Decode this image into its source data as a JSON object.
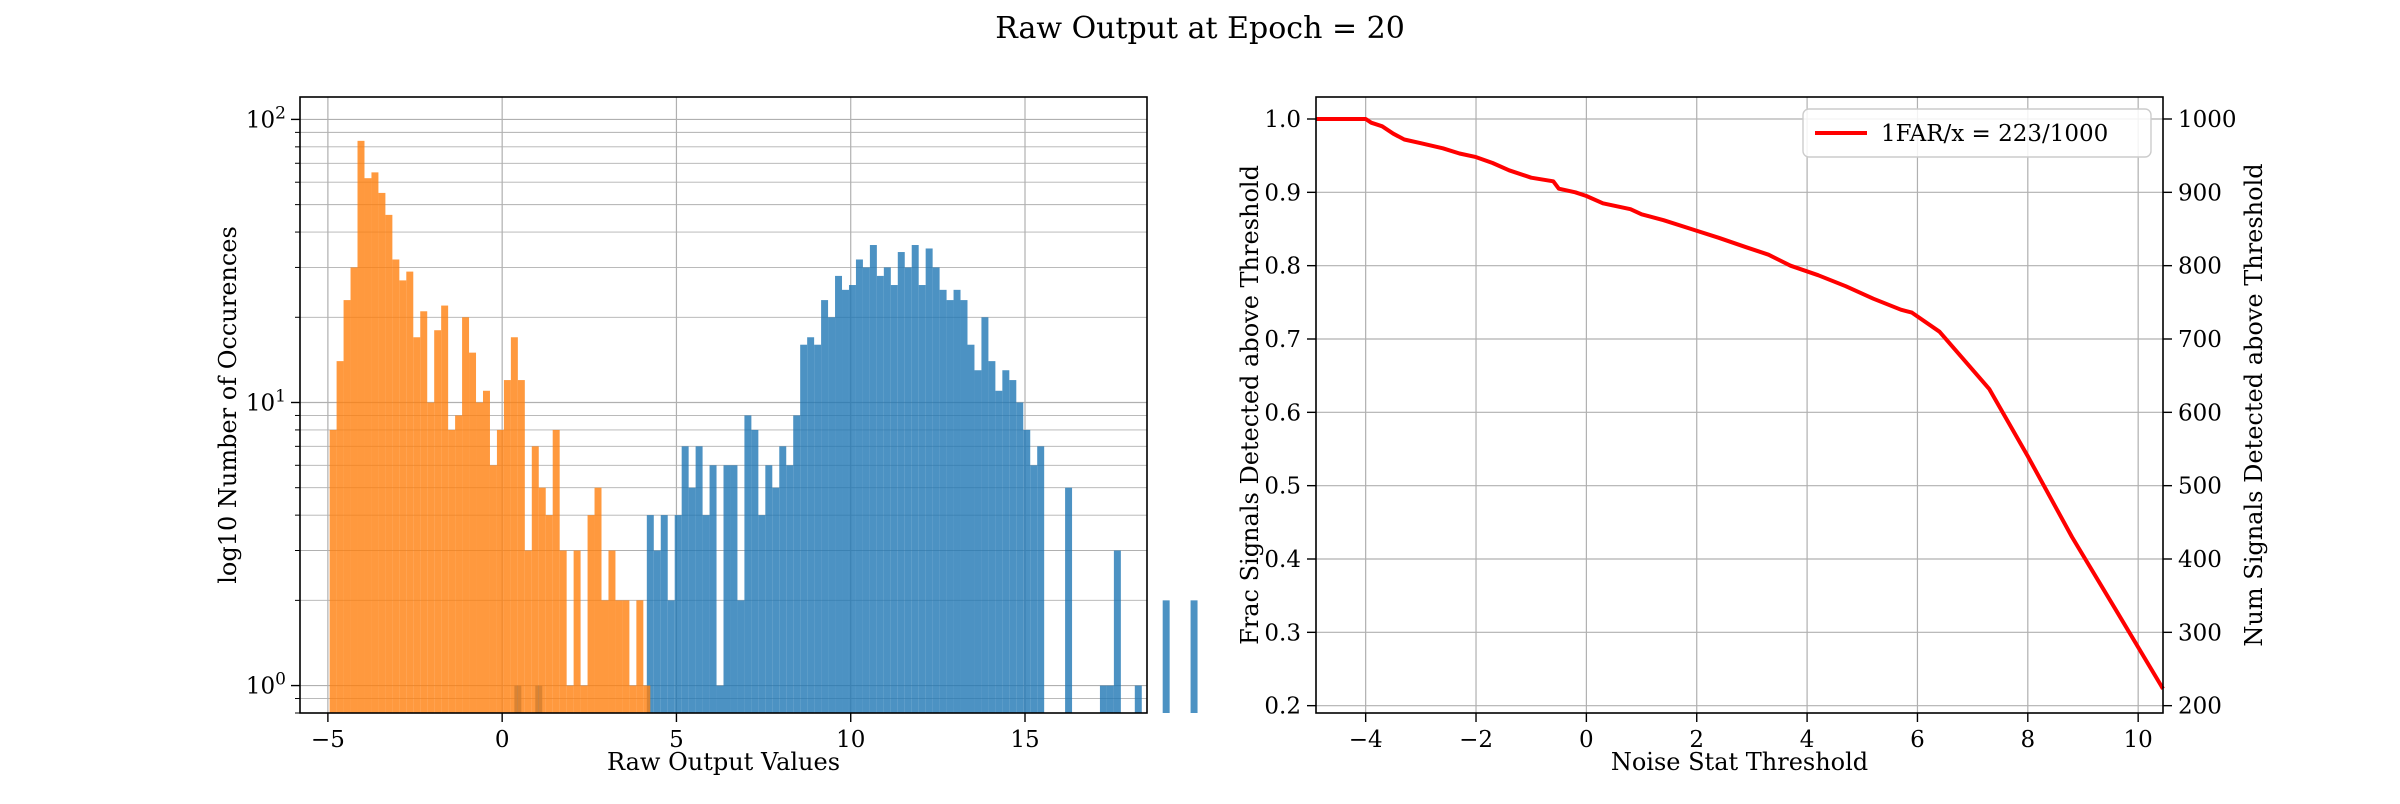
{
  "figure": {
    "title": "Raw Output at Epoch = 20"
  },
  "chart_data": [
    {
      "type": "histogram",
      "scale": "log",
      "xlabel": "Raw Output Values",
      "ylabel": "log10 Number of Occurences",
      "xlim": [
        -5.8,
        18.5
      ],
      "ylim": [
        0.8,
        120
      ],
      "xticks": [
        -5,
        0,
        5,
        10,
        15
      ],
      "yticks": [
        {
          "value": 1,
          "label": "10^0"
        },
        {
          "value": 10,
          "label": "10^1"
        },
        {
          "value": 100,
          "label": "10^2"
        }
      ],
      "grid": true,
      "series": [
        {
          "color": "#1f77b4",
          "bin_start": -3.85,
          "bin_width": 0.2,
          "counts": [
            0,
            0,
            0,
            0,
            0,
            0,
            0,
            0,
            0,
            0,
            0,
            0,
            0,
            0,
            0,
            0,
            0,
            0,
            0,
            0,
            0,
            1,
            0,
            0,
            1,
            0,
            0,
            0,
            0,
            0,
            0,
            0,
            0,
            0,
            0,
            0,
            0,
            0,
            0,
            0,
            4,
            3,
            4,
            2,
            4,
            7,
            5,
            7,
            4,
            6,
            1,
            6,
            6,
            2,
            9,
            8,
            4,
            6,
            5,
            7,
            6,
            9,
            16,
            17,
            16,
            23,
            20,
            28,
            25,
            26,
            32,
            30,
            36,
            28,
            30,
            26,
            34,
            30,
            36,
            26,
            35,
            30,
            25,
            23,
            25,
            23,
            16,
            13,
            20,
            14,
            11,
            13,
            12,
            10,
            8,
            6,
            7,
            0,
            0,
            0,
            5,
            0,
            0,
            0,
            0,
            1,
            1,
            3,
            0,
            0,
            1,
            0,
            0,
            0,
            2,
            0,
            0,
            0,
            2
          ]
        },
        {
          "color": "#ff7f0e",
          "bin_start": -4.95,
          "bin_width": 0.2,
          "counts": [
            8,
            14,
            23,
            30,
            84,
            62,
            65,
            55,
            46,
            32,
            27,
            29,
            17,
            21,
            10,
            18,
            22,
            8,
            9,
            20,
            15,
            10,
            11,
            6,
            8,
            12,
            17,
            12,
            3,
            7,
            5,
            4,
            8,
            3,
            1,
            3,
            1,
            4,
            5,
            2,
            3,
            2,
            2,
            1,
            2,
            1
          ]
        }
      ]
    },
    {
      "type": "line",
      "xlabel": "Noise Stat Threshold",
      "ylabel": "Frac Signals Detected above Threshold",
      "y2label": "Num Signals Detected above Threshold",
      "xlim": [
        -4.9,
        10.45
      ],
      "ylim": [
        0.19,
        1.03
      ],
      "y2lim": [
        190,
        1030
      ],
      "xticks": [
        -4,
        -2,
        0,
        2,
        4,
        6,
        8,
        10
      ],
      "yticks": [
        0.2,
        0.3,
        0.4,
        0.5,
        0.6,
        0.7,
        0.8,
        0.9,
        1.0
      ],
      "y2ticks": [
        200,
        300,
        400,
        500,
        600,
        700,
        800,
        900,
        1000
      ],
      "grid": true,
      "legend_position": "top-right",
      "series": [
        {
          "name": "1FAR/x = 223/1000",
          "color": "#ff0000",
          "x": [
            -4.9,
            -4.0,
            -3.9,
            -3.7,
            -3.5,
            -3.3,
            -3.0,
            -2.6,
            -2.3,
            -2.0,
            -1.7,
            -1.4,
            -1.0,
            -0.6,
            -0.5,
            -0.2,
            0.0,
            0.3,
            0.8,
            1.0,
            1.4,
            1.9,
            2.4,
            2.9,
            3.3,
            3.7,
            4.2,
            4.7,
            5.2,
            5.7,
            5.9,
            6.4,
            7.3,
            8.0,
            8.8,
            9.6,
            10.45
          ],
          "y": [
            1.0,
            1.0,
            0.995,
            0.99,
            0.98,
            0.972,
            0.967,
            0.96,
            0.953,
            0.948,
            0.94,
            0.93,
            0.92,
            0.915,
            0.905,
            0.9,
            0.895,
            0.885,
            0.877,
            0.87,
            0.862,
            0.85,
            0.838,
            0.825,
            0.815,
            0.8,
            0.787,
            0.772,
            0.755,
            0.74,
            0.736,
            0.71,
            0.632,
            0.54,
            0.43,
            0.33,
            0.223
          ]
        }
      ]
    }
  ]
}
